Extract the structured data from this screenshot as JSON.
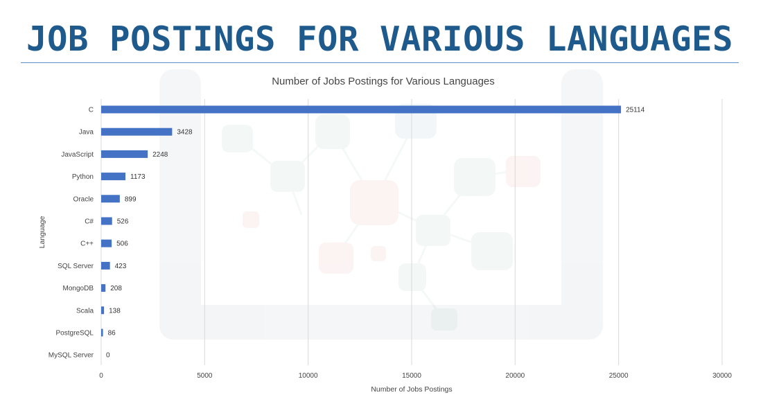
{
  "page": {
    "title": "JOB POSTINGS FOR VARIOUS LANGUAGES"
  },
  "colors": {
    "title": "#1f5a8c",
    "rule": "#5b8fc7",
    "bar": "#4472c4",
    "grid": "#d9d9d9"
  },
  "chart_data": {
    "type": "bar",
    "orientation": "horizontal",
    "title": "Number of Jobs Postings for Various Languages",
    "xlabel": "Number of Jobs Postings",
    "ylabel": "Language",
    "categories": [
      "C",
      "Java",
      "JavaScript",
      "Python",
      "Oracle",
      "C#",
      "C++",
      "SQL Server",
      "MongoDB",
      "Scala",
      "PostgreSQL",
      "MySQL Server"
    ],
    "values": [
      25114,
      3428,
      2248,
      1173,
      899,
      526,
      506,
      423,
      208,
      138,
      86,
      0
    ],
    "xlim": [
      0,
      30000
    ],
    "xticks": [
      0,
      5000,
      10000,
      15000,
      20000,
      25000,
      30000
    ],
    "grid": true,
    "legend": "none",
    "data_labels": true
  }
}
